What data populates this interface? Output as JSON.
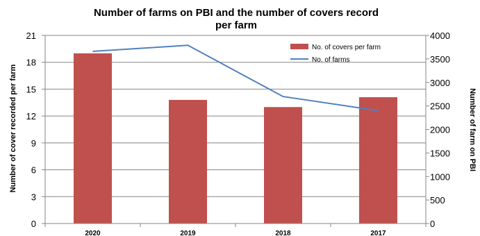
{
  "chart_data": {
    "type": "bar",
    "title_line1": "Number of farms on PBI and the number of covers record",
    "title_line2": "per farm",
    "categories": [
      "2020",
      "2019",
      "2018",
      "2017"
    ],
    "series": [
      {
        "name": "No. of covers per farm",
        "type": "bar",
        "axis": "left",
        "color": "#C0504D",
        "values": [
          19.0,
          13.8,
          13.0,
          14.1
        ]
      },
      {
        "name": "No. of farms",
        "type": "line",
        "axis": "right",
        "color": "#4F81BD",
        "values": [
          3660,
          3790,
          2700,
          2400
        ]
      }
    ],
    "ylabel": "Number of cover recorded per farm",
    "y2label": "Number of farm on  PBI",
    "ylim": [
      0,
      21
    ],
    "yticks": [
      "0",
      "3",
      "6",
      "9",
      "12",
      "15",
      "18",
      "21"
    ],
    "y2lim": [
      0,
      4000
    ],
    "y2ticks": [
      "0",
      "500",
      "1000",
      "1500",
      "2000",
      "2500",
      "3000",
      "3500",
      "4000"
    ],
    "legend_position": "top-right",
    "grid": true
  }
}
